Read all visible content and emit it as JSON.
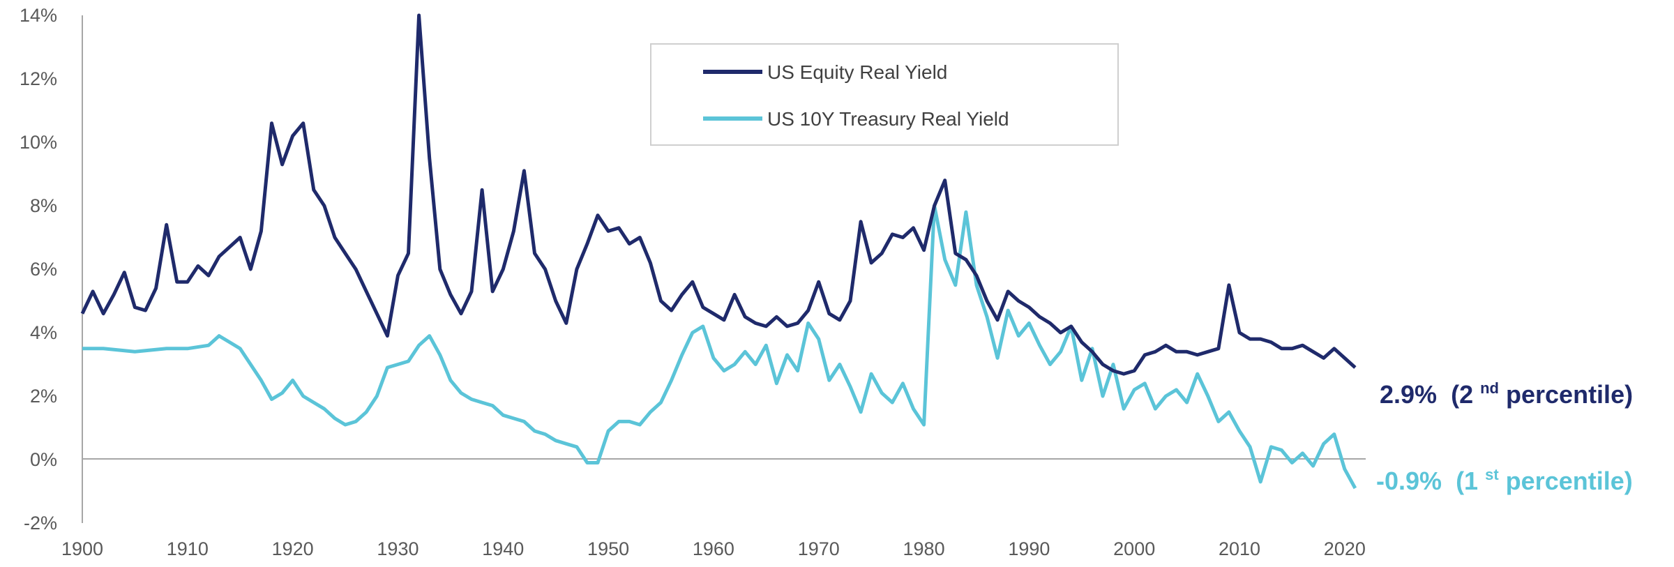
{
  "chart_data": {
    "type": "line",
    "title": "",
    "xlabel": "",
    "ylabel": "",
    "xlim": [
      1900,
      2022
    ],
    "ylim": [
      -2,
      14
    ],
    "x_ticks": [
      "1900",
      "1910",
      "1920",
      "1930",
      "1940",
      "1950",
      "1960",
      "1970",
      "1980",
      "1990",
      "2000",
      "2010",
      "2020"
    ],
    "y_ticks": [
      "-2%",
      "0%",
      "2%",
      "4%",
      "6%",
      "8%",
      "10%",
      "12%",
      "14%"
    ],
    "grid": false,
    "legend_position": "top-center",
    "colors": {
      "equity": "#1f2a6b",
      "treasury": "#5bc4d8",
      "axis": "#9e9e9e",
      "text": "#595959"
    },
    "series": [
      {
        "name": "US Equity Real Yield",
        "end_label": {
          "value": "2.9%",
          "open": "(2",
          "sup": "nd",
          "close": " percentile)"
        },
        "points": [
          [
            1900,
            4.6
          ],
          [
            1901,
            5.3
          ],
          [
            1902,
            4.6
          ],
          [
            1903,
            5.2
          ],
          [
            1904,
            5.9
          ],
          [
            1905,
            4.8
          ],
          [
            1906,
            4.7
          ],
          [
            1907,
            5.4
          ],
          [
            1908,
            7.4
          ],
          [
            1909,
            5.6
          ],
          [
            1910,
            5.6
          ],
          [
            1911,
            6.1
          ],
          [
            1912,
            5.8
          ],
          [
            1913,
            6.4
          ],
          [
            1914,
            6.7
          ],
          [
            1915,
            7.0
          ],
          [
            1916,
            6.0
          ],
          [
            1917,
            7.2
          ],
          [
            1918,
            10.6
          ],
          [
            1919,
            9.3
          ],
          [
            1920,
            10.2
          ],
          [
            1921,
            10.6
          ],
          [
            1922,
            8.5
          ],
          [
            1923,
            8.0
          ],
          [
            1924,
            7.0
          ],
          [
            1925,
            6.5
          ],
          [
            1926,
            6.0
          ],
          [
            1927,
            5.3
          ],
          [
            1928,
            4.6
          ],
          [
            1929,
            3.9
          ],
          [
            1930,
            5.8
          ],
          [
            1931,
            6.5
          ],
          [
            1932,
            14.0
          ],
          [
            1933,
            9.5
          ],
          [
            1934,
            6.0
          ],
          [
            1935,
            5.2
          ],
          [
            1936,
            4.6
          ],
          [
            1937,
            5.3
          ],
          [
            1938,
            8.5
          ],
          [
            1939,
            5.3
          ],
          [
            1940,
            6.0
          ],
          [
            1941,
            7.2
          ],
          [
            1942,
            9.1
          ],
          [
            1943,
            6.5
          ],
          [
            1944,
            6.0
          ],
          [
            1945,
            5.0
          ],
          [
            1946,
            4.3
          ],
          [
            1947,
            6.0
          ],
          [
            1948,
            6.8
          ],
          [
            1949,
            7.7
          ],
          [
            1950,
            7.2
          ],
          [
            1951,
            7.3
          ],
          [
            1952,
            6.8
          ],
          [
            1953,
            7.0
          ],
          [
            1954,
            6.2
          ],
          [
            1955,
            5.0
          ],
          [
            1956,
            4.7
          ],
          [
            1957,
            5.2
          ],
          [
            1958,
            5.6
          ],
          [
            1959,
            4.8
          ],
          [
            1960,
            4.6
          ],
          [
            1961,
            4.4
          ],
          [
            1962,
            5.2
          ],
          [
            1963,
            4.5
          ],
          [
            1964,
            4.3
          ],
          [
            1965,
            4.2
          ],
          [
            1966,
            4.5
          ],
          [
            1967,
            4.2
          ],
          [
            1968,
            4.3
          ],
          [
            1969,
            4.7
          ],
          [
            1970,
            5.6
          ],
          [
            1971,
            4.6
          ],
          [
            1972,
            4.4
          ],
          [
            1973,
            5.0
          ],
          [
            1974,
            7.5
          ],
          [
            1975,
            6.2
          ],
          [
            1976,
            6.5
          ],
          [
            1977,
            7.1
          ],
          [
            1978,
            7.0
          ],
          [
            1979,
            7.3
          ],
          [
            1980,
            6.6
          ],
          [
            1981,
            8.0
          ],
          [
            1982,
            8.8
          ],
          [
            1983,
            6.5
          ],
          [
            1984,
            6.3
          ],
          [
            1985,
            5.8
          ],
          [
            1986,
            5.0
          ],
          [
            1987,
            4.4
          ],
          [
            1988,
            5.3
          ],
          [
            1989,
            5.0
          ],
          [
            1990,
            4.8
          ],
          [
            1991,
            4.5
          ],
          [
            1992,
            4.3
          ],
          [
            1993,
            4.0
          ],
          [
            1994,
            4.2
          ],
          [
            1995,
            3.7
          ],
          [
            1996,
            3.4
          ],
          [
            1997,
            3.0
          ],
          [
            1998,
            2.8
          ],
          [
            1999,
            2.7
          ],
          [
            2000,
            2.8
          ],
          [
            2001,
            3.3
          ],
          [
            2002,
            3.4
          ],
          [
            2003,
            3.6
          ],
          [
            2004,
            3.4
          ],
          [
            2005,
            3.4
          ],
          [
            2006,
            3.3
          ],
          [
            2007,
            3.4
          ],
          [
            2008,
            3.5
          ],
          [
            2009,
            5.5
          ],
          [
            2010,
            4.0
          ],
          [
            2011,
            3.8
          ],
          [
            2012,
            3.8
          ],
          [
            2013,
            3.7
          ],
          [
            2014,
            3.5
          ],
          [
            2015,
            3.5
          ],
          [
            2016,
            3.6
          ],
          [
            2017,
            3.4
          ],
          [
            2018,
            3.2
          ],
          [
            2019,
            3.5
          ],
          [
            2020,
            3.2
          ],
          [
            2021,
            2.9
          ]
        ]
      },
      {
        "name": "US 10Y Treasury Real Yield",
        "end_label": {
          "value": "-0.9%",
          "open": "(1",
          "sup": "st",
          "close": " percentile)"
        },
        "points": [
          [
            1900,
            3.5
          ],
          [
            1902,
            3.5
          ],
          [
            1905,
            3.4
          ],
          [
            1908,
            3.5
          ],
          [
            1910,
            3.5
          ],
          [
            1912,
            3.6
          ],
          [
            1913,
            3.9
          ],
          [
            1914,
            3.7
          ],
          [
            1915,
            3.5
          ],
          [
            1916,
            3.0
          ],
          [
            1917,
            2.5
          ],
          [
            1918,
            1.9
          ],
          [
            1919,
            2.1
          ],
          [
            1920,
            2.5
          ],
          [
            1921,
            2.0
          ],
          [
            1922,
            1.8
          ],
          [
            1923,
            1.6
          ],
          [
            1924,
            1.3
          ],
          [
            1925,
            1.1
          ],
          [
            1926,
            1.2
          ],
          [
            1927,
            1.5
          ],
          [
            1928,
            2.0
          ],
          [
            1929,
            2.9
          ],
          [
            1930,
            3.0
          ],
          [
            1931,
            3.1
          ],
          [
            1932,
            3.6
          ],
          [
            1933,
            3.9
          ],
          [
            1934,
            3.3
          ],
          [
            1935,
            2.5
          ],
          [
            1936,
            2.1
          ],
          [
            1937,
            1.9
          ],
          [
            1938,
            1.8
          ],
          [
            1939,
            1.7
          ],
          [
            1940,
            1.4
          ],
          [
            1941,
            1.3
          ],
          [
            1942,
            1.2
          ],
          [
            1943,
            0.9
          ],
          [
            1944,
            0.8
          ],
          [
            1945,
            0.6
          ],
          [
            1946,
            0.5
          ],
          [
            1947,
            0.4
          ],
          [
            1948,
            -0.1
          ],
          [
            1949,
            -0.1
          ],
          [
            1950,
            0.9
          ],
          [
            1951,
            1.2
          ],
          [
            1952,
            1.2
          ],
          [
            1953,
            1.1
          ],
          [
            1954,
            1.5
          ],
          [
            1955,
            1.8
          ],
          [
            1956,
            2.5
          ],
          [
            1957,
            3.3
          ],
          [
            1958,
            4.0
          ],
          [
            1959,
            4.2
          ],
          [
            1960,
            3.2
          ],
          [
            1961,
            2.8
          ],
          [
            1962,
            3.0
          ],
          [
            1963,
            3.4
          ],
          [
            1964,
            3.0
          ],
          [
            1965,
            3.6
          ],
          [
            1966,
            2.4
          ],
          [
            1967,
            3.3
          ],
          [
            1968,
            2.8
          ],
          [
            1969,
            4.3
          ],
          [
            1970,
            3.8
          ],
          [
            1971,
            2.5
          ],
          [
            1972,
            3.0
          ],
          [
            1973,
            2.3
          ],
          [
            1974,
            1.5
          ],
          [
            1975,
            2.7
          ],
          [
            1976,
            2.1
          ],
          [
            1977,
            1.8
          ],
          [
            1978,
            2.4
          ],
          [
            1979,
            1.6
          ],
          [
            1980,
            1.1
          ],
          [
            1981,
            8.0
          ],
          [
            1982,
            6.3
          ],
          [
            1983,
            5.5
          ],
          [
            1984,
            7.8
          ],
          [
            1985,
            5.5
          ],
          [
            1986,
            4.5
          ],
          [
            1987,
            3.2
          ],
          [
            1988,
            4.7
          ],
          [
            1989,
            3.9
          ],
          [
            1990,
            4.3
          ],
          [
            1991,
            3.6
          ],
          [
            1992,
            3.0
          ],
          [
            1993,
            3.4
          ],
          [
            1994,
            4.2
          ],
          [
            1995,
            2.5
          ],
          [
            1996,
            3.5
          ],
          [
            1997,
            2.0
          ],
          [
            1998,
            3.0
          ],
          [
            1999,
            1.6
          ],
          [
            2000,
            2.2
          ],
          [
            2001,
            2.4
          ],
          [
            2002,
            1.6
          ],
          [
            2003,
            2.0
          ],
          [
            2004,
            2.2
          ],
          [
            2005,
            1.8
          ],
          [
            2006,
            2.7
          ],
          [
            2007,
            2.0
          ],
          [
            2008,
            1.2
          ],
          [
            2009,
            1.5
          ],
          [
            2010,
            0.9
          ],
          [
            2011,
            0.4
          ],
          [
            2012,
            -0.7
          ],
          [
            2013,
            0.4
          ],
          [
            2014,
            0.3
          ],
          [
            2015,
            -0.1
          ],
          [
            2016,
            0.2
          ],
          [
            2017,
            -0.2
          ],
          [
            2018,
            0.5
          ],
          [
            2019,
            0.8
          ],
          [
            2020,
            -0.3
          ],
          [
            2021,
            -0.9
          ]
        ]
      }
    ]
  }
}
